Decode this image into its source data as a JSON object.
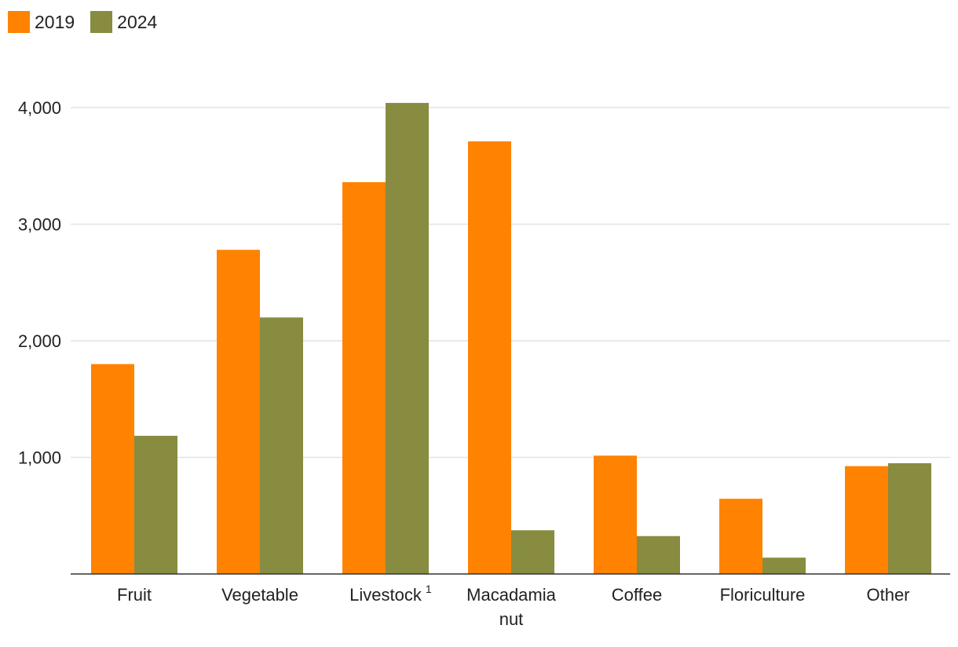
{
  "chart_data": {
    "type": "bar",
    "title": "",
    "xlabel": "",
    "ylabel": "",
    "ylim": [
      0,
      4000
    ],
    "yticks": [
      {
        "value": 1000,
        "label": "1,000"
      },
      {
        "value": 2000,
        "label": "2,000"
      },
      {
        "value": 3000,
        "label": "3,000"
      },
      {
        "value": 4000,
        "label": "4,000"
      }
    ],
    "categories": [
      "Fruit",
      "Vegetable",
      "Livestock",
      "Macadamia nut",
      "Coffee",
      "Floriculture",
      "Other"
    ],
    "category_lines": [
      [
        "Fruit"
      ],
      [
        "Vegetable"
      ],
      [
        "Livestock"
      ],
      [
        "Macadamia",
        "nut"
      ],
      [
        "Coffee"
      ],
      [
        "Floriculture"
      ],
      [
        "Other"
      ]
    ],
    "category_footnotes": [
      "",
      "",
      "1",
      "",
      "",
      "",
      ""
    ],
    "series": [
      {
        "name": "2019",
        "color": "#ff8200",
        "values": [
          1800,
          2780,
          3360,
          3710,
          1015,
          645,
          925
        ]
      },
      {
        "name": "2024",
        "color": "#878c41",
        "values": [
          1185,
          2200,
          4040,
          375,
          325,
          140,
          950
        ]
      }
    ],
    "grid": true,
    "legend": "top-left"
  }
}
